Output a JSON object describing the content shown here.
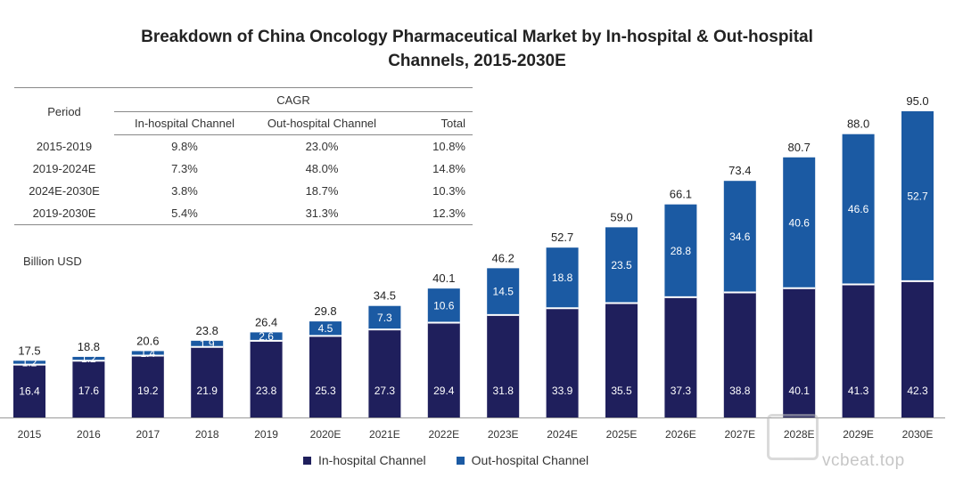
{
  "title_line1": "Breakdown of China Oncology Pharmaceutical Market by In-hospital & Out-hospital",
  "title_line2": "Channels, 2015-2030E",
  "cagr_table": {
    "period_header": "Period",
    "cagr_header": "CAGR",
    "columns": [
      "In-hospital Channel",
      "Out-hospital Channel",
      "Total"
    ],
    "rows": [
      {
        "period": "2015-2019",
        "in": "9.8%",
        "out": "23.0%",
        "total": "10.8%"
      },
      {
        "period": "2019-2024E",
        "in": "7.3%",
        "out": "48.0%",
        "total": "14.8%"
      },
      {
        "period": "2024E-2030E",
        "in": "3.8%",
        "out": "18.7%",
        "total": "10.3%"
      },
      {
        "period": "2019-2030E",
        "in": "5.4%",
        "out": "31.3%",
        "total": "12.3%"
      }
    ]
  },
  "unit_label": "Billion USD",
  "colors": {
    "in_hospital": "#1f1f5c",
    "out_hospital": "#1b5aa3"
  },
  "watermark_text": "vcbeat.top",
  "chart_data": {
    "type": "bar",
    "stacked": true,
    "title": "Breakdown of China Oncology Pharmaceutical Market by In-hospital & Out-hospital Channels, 2015-2030E",
    "ylabel": "Billion USD",
    "ylim": [
      0,
      95
    ],
    "categories": [
      "2015",
      "2016",
      "2017",
      "2018",
      "2019",
      "2020E",
      "2021E",
      "2022E",
      "2023E",
      "2024E",
      "2025E",
      "2026E",
      "2027E",
      "2028E",
      "2029E",
      "2030E"
    ],
    "series": [
      {
        "name": "In-hospital Channel",
        "values": [
          16.4,
          17.6,
          19.2,
          21.9,
          23.8,
          25.3,
          27.3,
          29.4,
          31.8,
          33.9,
          35.5,
          37.3,
          38.8,
          40.1,
          41.3,
          42.3
        ]
      },
      {
        "name": "Out-hospital Channel",
        "values": [
          1.2,
          1.2,
          1.4,
          1.9,
          2.6,
          4.5,
          7.3,
          10.6,
          14.5,
          18.8,
          23.5,
          28.8,
          34.6,
          40.6,
          46.6,
          52.7
        ]
      }
    ],
    "totals": [
      17.5,
      18.8,
      20.6,
      23.8,
      26.4,
      29.8,
      34.5,
      40.1,
      46.2,
      52.7,
      59.0,
      66.1,
      73.4,
      80.7,
      88.0,
      95.0
    ],
    "legend": [
      "In-hospital Channel",
      "Out-hospital Channel"
    ]
  }
}
